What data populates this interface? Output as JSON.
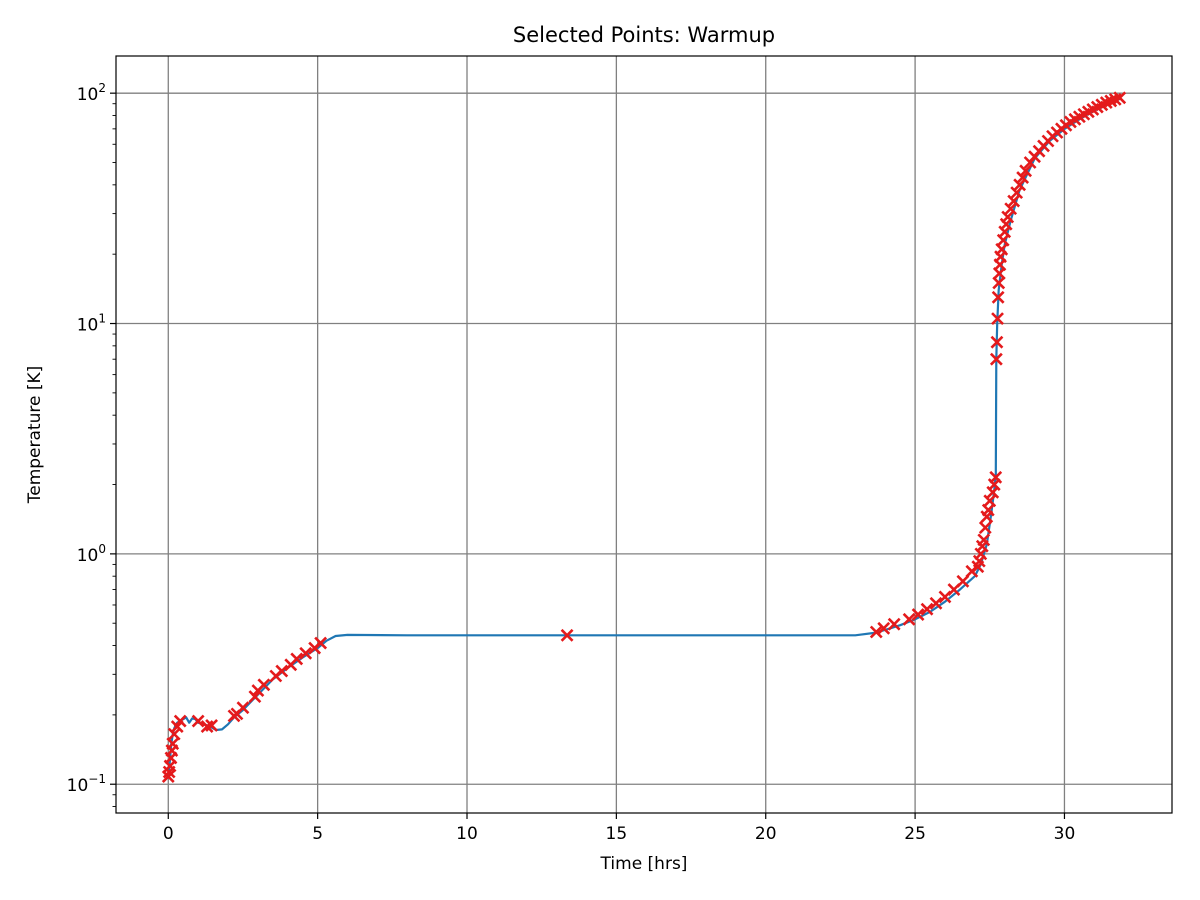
{
  "chart_data": {
    "type": "scatter",
    "title": "Selected Points: Warmup",
    "xlabel": "Time [hrs]",
    "ylabel": "Temperature [K]",
    "xlim": [
      -1.75,
      33.6
    ],
    "ylim": [
      0.075,
      145
    ],
    "yscale": "log",
    "grid": true,
    "x_ticks": [
      0,
      5,
      10,
      15,
      20,
      25,
      30
    ],
    "x_tick_labels": [
      "0",
      "5",
      "10",
      "15",
      "20",
      "25",
      "30"
    ],
    "y_ticks": [
      0.1,
      1,
      10,
      100
    ],
    "y_tick_labels": [
      {
        "base": "10",
        "exp": "−1"
      },
      {
        "base": "10",
        "exp": "0"
      },
      {
        "base": "10",
        "exp": "1"
      },
      {
        "base": "10",
        "exp": "2"
      }
    ],
    "series": [
      {
        "kind": "line",
        "color": "#1f77b4",
        "x": [
          0.0,
          0.05,
          0.1,
          0.15,
          0.2,
          0.3,
          0.45,
          0.6,
          0.7,
          0.8,
          0.9,
          1.0,
          1.2,
          1.4,
          1.6,
          1.8,
          2.0,
          2.2,
          2.5,
          3.0,
          3.5,
          4.0,
          4.5,
          5.0,
          5.3,
          5.6,
          6.0,
          8.0,
          10.0,
          13.4,
          16.0,
          20.0,
          23.0,
          23.7,
          24.5,
          25.0,
          25.5,
          26.0,
          26.5,
          27.0,
          27.2,
          27.4,
          27.55,
          27.65,
          27.7,
          27.72,
          27.75,
          27.8,
          27.9,
          28.0,
          28.2,
          28.5,
          29.0,
          29.5,
          30.0,
          30.5,
          31.0,
          31.5,
          31.9
        ],
        "y": [
          0.11,
          0.125,
          0.15,
          0.165,
          0.175,
          0.185,
          0.19,
          0.195,
          0.185,
          0.193,
          0.192,
          0.185,
          0.182,
          0.178,
          0.172,
          0.173,
          0.182,
          0.195,
          0.21,
          0.245,
          0.285,
          0.32,
          0.355,
          0.39,
          0.42,
          0.44,
          0.445,
          0.443,
          0.443,
          0.443,
          0.443,
          0.443,
          0.443,
          0.455,
          0.49,
          0.52,
          0.56,
          0.62,
          0.7,
          0.8,
          0.9,
          1.1,
          1.5,
          1.9,
          2.2,
          7.0,
          10.0,
          14.0,
          18.0,
          22.0,
          28.0,
          38.0,
          52.0,
          62.0,
          70.0,
          77.0,
          84.0,
          90.0,
          95.0
        ]
      },
      {
        "kind": "markers",
        "marker": "x",
        "color": "#e41a1c",
        "x": [
          0.0,
          0.03,
          0.06,
          0.09,
          0.12,
          0.15,
          0.2,
          0.3,
          0.4,
          1.0,
          1.3,
          1.45,
          2.2,
          2.3,
          2.5,
          2.9,
          3.0,
          3.2,
          3.6,
          3.8,
          4.1,
          4.3,
          4.6,
          4.9,
          5.1,
          13.35,
          23.7,
          23.95,
          24.3,
          24.8,
          25.1,
          25.4,
          25.7,
          26.0,
          26.3,
          26.6,
          26.9,
          27.1,
          27.15,
          27.2,
          27.25,
          27.3,
          27.35,
          27.4,
          27.45,
          27.5,
          27.6,
          27.65,
          27.7,
          27.72,
          27.74,
          27.76,
          27.78,
          27.8,
          27.82,
          27.84,
          27.86,
          27.9,
          27.95,
          28.0,
          28.05,
          28.1,
          28.2,
          28.3,
          28.4,
          28.5,
          28.6,
          28.7,
          28.85,
          29.0,
          29.15,
          29.3,
          29.45,
          29.6,
          29.75,
          29.9,
          30.05,
          30.2,
          30.35,
          30.5,
          30.65,
          30.8,
          30.95,
          31.1,
          31.25,
          31.4,
          31.55,
          31.7,
          31.85
        ],
        "y": [
          0.108,
          0.113,
          0.12,
          0.13,
          0.14,
          0.15,
          0.165,
          0.178,
          0.188,
          0.188,
          0.178,
          0.18,
          0.198,
          0.202,
          0.215,
          0.24,
          0.255,
          0.27,
          0.295,
          0.31,
          0.33,
          0.35,
          0.37,
          0.39,
          0.41,
          0.443,
          0.458,
          0.475,
          0.495,
          0.52,
          0.545,
          0.575,
          0.61,
          0.65,
          0.7,
          0.76,
          0.84,
          0.88,
          0.93,
          1.0,
          1.08,
          1.15,
          1.3,
          1.45,
          1.55,
          1.7,
          1.85,
          2.0,
          2.15,
          7.0,
          8.3,
          10.5,
          13.0,
          15.0,
          16.5,
          18.0,
          19.5,
          21.0,
          23.0,
          25.0,
          27.0,
          29.0,
          31.5,
          34.0,
          37.0,
          40.0,
          43.0,
          46.0,
          50.0,
          53.0,
          56.0,
          59.0,
          62.0,
          65.0,
          67.5,
          70.0,
          72.5,
          75.0,
          77.0,
          79.0,
          81.0,
          83.0,
          85.0,
          87.0,
          89.0,
          91.0,
          92.5,
          94.0,
          95.5
        ]
      }
    ]
  }
}
